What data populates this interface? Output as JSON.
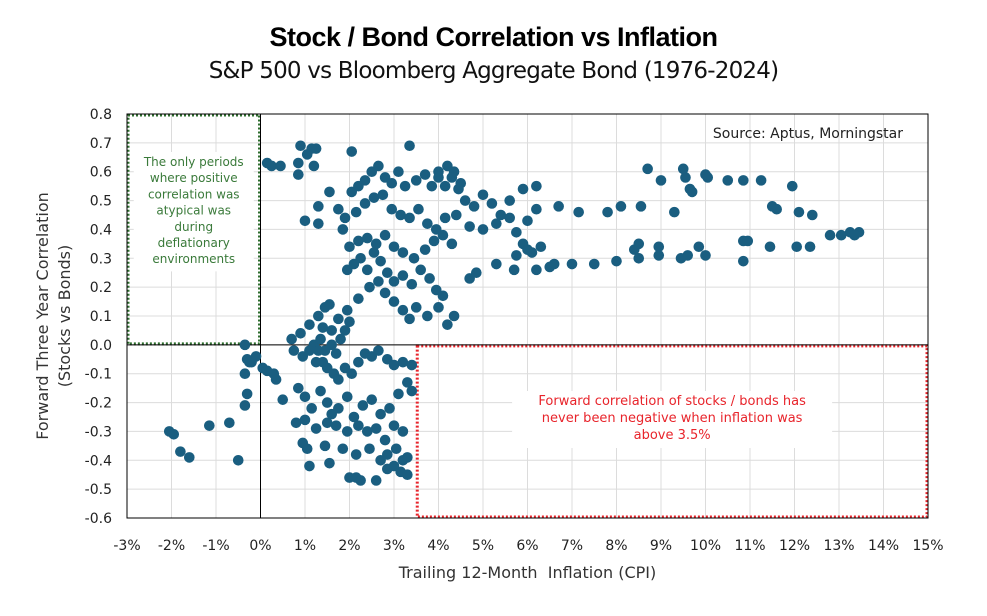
{
  "chart_data": {
    "type": "scatter",
    "title": "Stock / Bond Correlation vs Inflation",
    "subtitle": "S&P 500 vs Bloomberg Aggregate Bond (1976-2024)",
    "xlabel": "Trailing 12-Month  Inflation (CPI)",
    "ylabel_line1": "Forward Three Year Correlation",
    "ylabel_line2": "(Stocks vs Bonds)",
    "xlim": [
      -3,
      15
    ],
    "ylim": [
      -0.6,
      0.8
    ],
    "grid": true,
    "x_ticks": [
      -3,
      -2,
      -1,
      0,
      1,
      2,
      3,
      4,
      5,
      6,
      7,
      8,
      9,
      10,
      11,
      12,
      13,
      14,
      15
    ],
    "x_tick_labels": [
      "-3%",
      "-2%",
      "-1%",
      "0%",
      "1%",
      "2%",
      "3%",
      "4%",
      "5%",
      "6%",
      "7%",
      "8%",
      "9%",
      "10%",
      "11%",
      "12%",
      "13%",
      "14%",
      "15%"
    ],
    "y_ticks": [
      0.8,
      0.7,
      0.6,
      0.5,
      0.4,
      0.3,
      0.2,
      0.1,
      0.0,
      -0.1,
      -0.2,
      -0.3,
      -0.4,
      -0.5,
      -0.6
    ],
    "y_tick_labels": [
      "0.8",
      "0.7",
      "0.6",
      "0.5",
      "0.4",
      "0.3",
      "0.2",
      "0.1",
      "0.0",
      "-0.1",
      "-0.2",
      "-0.3",
      "-0.4",
      "-0.5",
      "-0.6"
    ],
    "point_color": "#1a5e80",
    "source": "Source: Aptus, Morningstar",
    "annotations": [
      {
        "name": "deflation-note",
        "color": "#2e6e2e",
        "lines": [
          "The only periods",
          "where positive",
          "correlation was",
          "atypical was",
          "during",
          "deflationary",
          "environments"
        ],
        "box": {
          "x0": -3,
          "x1": 0,
          "y0": 0.0,
          "y1": 0.8
        }
      },
      {
        "name": "inflation-note",
        "color": "#e8242b",
        "lines": [
          "Forward correlation of stocks / bonds has",
          "never been negative when inflation was",
          "above 3.5%"
        ],
        "box": {
          "x0": 3.5,
          "x1": 15,
          "y0": -0.6,
          "y1": 0.0
        }
      }
    ],
    "points": [
      [
        -2.05,
        -0.3
      ],
      [
        -1.95,
        -0.31
      ],
      [
        -1.8,
        -0.37
      ],
      [
        -1.6,
        -0.39
      ],
      [
        -1.15,
        -0.28
      ],
      [
        -0.7,
        -0.27
      ],
      [
        -0.5,
        -0.4
      ],
      [
        -0.35,
        0.0
      ],
      [
        -0.3,
        -0.05
      ],
      [
        -0.25,
        -0.06
      ],
      [
        -0.2,
        -0.06
      ],
      [
        -0.1,
        -0.04
      ],
      [
        -0.35,
        -0.1
      ],
      [
        -0.3,
        -0.17
      ],
      [
        -0.35,
        -0.21
      ],
      [
        0.05,
        -0.08
      ],
      [
        0.15,
        -0.09
      ],
      [
        0.3,
        -0.1
      ],
      [
        0.35,
        -0.12
      ],
      [
        0.5,
        -0.19
      ],
      [
        0.15,
        0.63
      ],
      [
        0.25,
        0.62
      ],
      [
        0.45,
        0.62
      ],
      [
        0.85,
        0.63
      ],
      [
        0.9,
        0.69
      ],
      [
        1.05,
        0.66
      ],
      [
        1.15,
        0.68
      ],
      [
        1.25,
        0.68
      ],
      [
        1.2,
        0.62
      ],
      [
        0.85,
        0.59
      ],
      [
        1.55,
        0.53
      ],
      [
        1.3,
        0.48
      ],
      [
        1.3,
        0.42
      ],
      [
        1.0,
        0.43
      ],
      [
        1.75,
        0.47
      ],
      [
        1.85,
        0.4
      ],
      [
        2.05,
        0.67
      ],
      [
        0.7,
        0.02
      ],
      [
        0.9,
        0.04
      ],
      [
        1.1,
        0.07
      ],
      [
        1.3,
        0.1
      ],
      [
        1.45,
        0.13
      ],
      [
        1.55,
        0.14
      ],
      [
        1.4,
        0.06
      ],
      [
        1.2,
        0.0
      ],
      [
        0.75,
        -0.02
      ],
      [
        0.95,
        -0.04
      ],
      [
        1.1,
        -0.02
      ],
      [
        1.3,
        -0.02
      ],
      [
        1.45,
        -0.02
      ],
      [
        1.6,
        0.0
      ],
      [
        1.7,
        -0.03
      ],
      [
        1.8,
        0.02
      ],
      [
        1.9,
        0.05
      ],
      [
        2.0,
        0.08
      ],
      [
        1.25,
        -0.06
      ],
      [
        1.4,
        -0.06
      ],
      [
        1.5,
        -0.08
      ],
      [
        1.65,
        -0.1
      ],
      [
        1.75,
        -0.12
      ],
      [
        1.9,
        -0.08
      ],
      [
        2.05,
        -0.1
      ],
      [
        2.2,
        -0.06
      ],
      [
        2.35,
        -0.03
      ],
      [
        2.5,
        -0.04
      ],
      [
        2.65,
        -0.02
      ],
      [
        2.85,
        -0.05
      ],
      [
        3.0,
        -0.07
      ],
      [
        3.2,
        -0.06
      ],
      [
        3.4,
        -0.07
      ],
      [
        0.85,
        -0.15
      ],
      [
        1.0,
        -0.18
      ],
      [
        1.15,
        -0.22
      ],
      [
        1.35,
        -0.16
      ],
      [
        1.5,
        -0.2
      ],
      [
        1.6,
        -0.24
      ],
      [
        1.75,
        -0.22
      ],
      [
        1.95,
        -0.18
      ],
      [
        2.1,
        -0.25
      ],
      [
        2.3,
        -0.21
      ],
      [
        2.5,
        -0.19
      ],
      [
        2.7,
        -0.24
      ],
      [
        2.9,
        -0.22
      ],
      [
        3.1,
        -0.17
      ],
      [
        3.3,
        -0.13
      ],
      [
        3.4,
        -0.16
      ],
      [
        0.8,
        -0.27
      ],
      [
        1.0,
        -0.26
      ],
      [
        1.25,
        -0.29
      ],
      [
        1.5,
        -0.27
      ],
      [
        1.7,
        -0.28
      ],
      [
        1.95,
        -0.3
      ],
      [
        2.2,
        -0.28
      ],
      [
        2.4,
        -0.3
      ],
      [
        2.6,
        -0.29
      ],
      [
        2.8,
        -0.33
      ],
      [
        3.0,
        -0.28
      ],
      [
        3.2,
        -0.3
      ],
      [
        0.95,
        -0.34
      ],
      [
        1.05,
        -0.36
      ],
      [
        1.45,
        -0.35
      ],
      [
        1.85,
        -0.36
      ],
      [
        2.15,
        -0.38
      ],
      [
        2.45,
        -0.36
      ],
      [
        2.7,
        -0.4
      ],
      [
        2.85,
        -0.38
      ],
      [
        3.05,
        -0.36
      ],
      [
        3.2,
        -0.4
      ],
      [
        3.3,
        -0.39
      ],
      [
        1.1,
        -0.42
      ],
      [
        1.55,
        -0.41
      ],
      [
        2.0,
        -0.46
      ],
      [
        2.15,
        -0.46
      ],
      [
        2.25,
        -0.47
      ],
      [
        2.6,
        -0.47
      ],
      [
        2.85,
        -0.43
      ],
      [
        3.0,
        -0.42
      ],
      [
        3.15,
        -0.44
      ],
      [
        3.3,
        -0.45
      ],
      [
        1.35,
        0.02
      ],
      [
        1.6,
        0.05
      ],
      [
        1.75,
        0.09
      ],
      [
        1.95,
        0.12
      ],
      [
        2.2,
        0.16
      ],
      [
        2.45,
        0.2
      ],
      [
        2.65,
        0.22
      ],
      [
        2.8,
        0.18
      ],
      [
        3.0,
        0.15
      ],
      [
        3.2,
        0.12
      ],
      [
        3.35,
        0.09
      ],
      [
        3.5,
        0.13
      ],
      [
        3.75,
        0.1
      ],
      [
        4.0,
        0.13
      ],
      [
        4.2,
        0.07
      ],
      [
        4.35,
        0.1
      ],
      [
        1.95,
        0.26
      ],
      [
        2.1,
        0.28
      ],
      [
        2.25,
        0.3
      ],
      [
        2.4,
        0.26
      ],
      [
        2.55,
        0.32
      ],
      [
        2.7,
        0.29
      ],
      [
        2.85,
        0.25
      ],
      [
        3.0,
        0.22
      ],
      [
        3.2,
        0.24
      ],
      [
        3.4,
        0.21
      ],
      [
        3.6,
        0.26
      ],
      [
        3.8,
        0.23
      ],
      [
        3.95,
        0.19
      ],
      [
        4.1,
        0.17
      ],
      [
        2.0,
        0.34
      ],
      [
        2.2,
        0.36
      ],
      [
        2.4,
        0.37
      ],
      [
        2.6,
        0.35
      ],
      [
        2.8,
        0.38
      ],
      [
        3.0,
        0.34
      ],
      [
        3.2,
        0.32
      ],
      [
        3.45,
        0.3
      ],
      [
        3.7,
        0.33
      ],
      [
        3.9,
        0.36
      ],
      [
        4.1,
        0.38
      ],
      [
        4.3,
        0.35
      ],
      [
        1.9,
        0.44
      ],
      [
        2.15,
        0.46
      ],
      [
        2.35,
        0.49
      ],
      [
        2.55,
        0.51
      ],
      [
        2.75,
        0.52
      ],
      [
        2.95,
        0.47
      ],
      [
        3.15,
        0.45
      ],
      [
        3.35,
        0.44
      ],
      [
        3.55,
        0.47
      ],
      [
        3.75,
        0.42
      ],
      [
        3.95,
        0.4
      ],
      [
        4.15,
        0.44
      ],
      [
        2.05,
        0.53
      ],
      [
        2.2,
        0.55
      ],
      [
        2.35,
        0.57
      ],
      [
        2.5,
        0.6
      ],
      [
        2.65,
        0.62
      ],
      [
        2.8,
        0.58
      ],
      [
        2.95,
        0.56
      ],
      [
        3.1,
        0.6
      ],
      [
        3.25,
        0.55
      ],
      [
        3.5,
        0.57
      ],
      [
        3.7,
        0.59
      ],
      [
        3.85,
        0.55
      ],
      [
        4.0,
        0.58
      ],
      [
        4.15,
        0.55
      ],
      [
        4.35,
        0.6
      ],
      [
        4.5,
        0.56
      ],
      [
        3.35,
        0.69
      ],
      [
        4.0,
        0.6
      ],
      [
        4.2,
        0.62
      ],
      [
        4.3,
        0.58
      ],
      [
        4.45,
        0.54
      ],
      [
        4.6,
        0.5
      ],
      [
        4.8,
        0.48
      ],
      [
        5.0,
        0.52
      ],
      [
        5.2,
        0.49
      ],
      [
        5.4,
        0.45
      ],
      [
        5.6,
        0.5
      ],
      [
        5.9,
        0.54
      ],
      [
        6.2,
        0.55
      ],
      [
        4.4,
        0.45
      ],
      [
        4.7,
        0.41
      ],
      [
        5.0,
        0.4
      ],
      [
        5.3,
        0.42
      ],
      [
        5.6,
        0.44
      ],
      [
        5.75,
        0.39
      ],
      [
        6.0,
        0.43
      ],
      [
        6.2,
        0.47
      ],
      [
        4.7,
        0.23
      ],
      [
        4.85,
        0.25
      ],
      [
        5.3,
        0.28
      ],
      [
        5.75,
        0.31
      ],
      [
        5.9,
        0.35
      ],
      [
        6.0,
        0.33
      ],
      [
        6.1,
        0.32
      ],
      [
        6.3,
        0.34
      ],
      [
        5.7,
        0.26
      ],
      [
        6.2,
        0.26
      ],
      [
        6.5,
        0.27
      ],
      [
        6.6,
        0.28
      ],
      [
        7.0,
        0.28
      ],
      [
        7.5,
        0.28
      ],
      [
        8.0,
        0.29
      ],
      [
        8.5,
        0.3
      ],
      [
        8.95,
        0.31
      ],
      [
        9.45,
        0.3
      ],
      [
        9.6,
        0.31
      ],
      [
        10.0,
        0.31
      ],
      [
        10.85,
        0.29
      ],
      [
        8.4,
        0.33
      ],
      [
        8.5,
        0.35
      ],
      [
        8.95,
        0.34
      ],
      [
        9.85,
        0.34
      ],
      [
        10.85,
        0.36
      ],
      [
        10.95,
        0.36
      ],
      [
        11.45,
        0.34
      ],
      [
        12.05,
        0.34
      ],
      [
        12.35,
        0.34
      ],
      [
        12.8,
        0.38
      ],
      [
        13.05,
        0.38
      ],
      [
        13.25,
        0.39
      ],
      [
        13.45,
        0.39
      ],
      [
        13.35,
        0.38
      ],
      [
        6.7,
        0.48
      ],
      [
        7.15,
        0.46
      ],
      [
        7.8,
        0.46
      ],
      [
        8.1,
        0.48
      ],
      [
        8.55,
        0.48
      ],
      [
        9.3,
        0.46
      ],
      [
        9.65,
        0.54
      ],
      [
        9.7,
        0.53
      ],
      [
        11.5,
        0.48
      ],
      [
        11.6,
        0.47
      ],
      [
        12.1,
        0.46
      ],
      [
        12.4,
        0.45
      ],
      [
        8.7,
        0.61
      ],
      [
        9.0,
        0.57
      ],
      [
        9.5,
        0.61
      ],
      [
        9.55,
        0.58
      ],
      [
        10.0,
        0.59
      ],
      [
        10.05,
        0.58
      ],
      [
        10.5,
        0.57
      ],
      [
        11.25,
        0.57
      ],
      [
        10.85,
        0.57
      ],
      [
        11.95,
        0.55
      ]
    ]
  }
}
